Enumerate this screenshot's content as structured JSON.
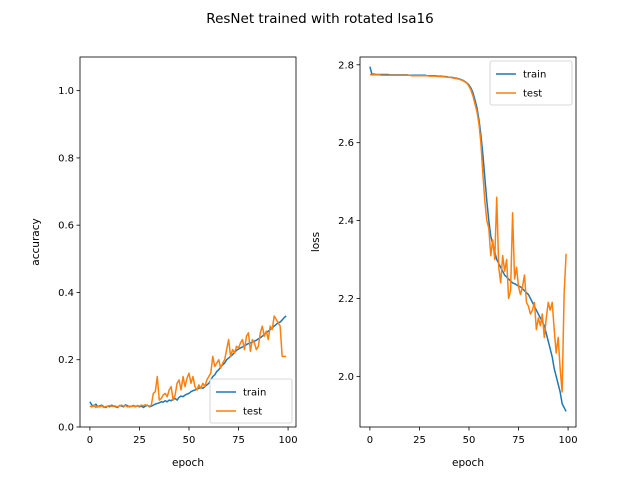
{
  "suptitle": "ResNet trained with rotated lsa16",
  "colors": {
    "train": "#1f77b4",
    "test": "#ff7f0e"
  },
  "chart_data": [
    {
      "type": "line",
      "xlabel": "epoch",
      "ylabel": "accuracy",
      "xlim": [
        -5,
        104
      ],
      "ylim": [
        0.0,
        1.1
      ],
      "xticks": [
        0,
        25,
        50,
        75,
        100
      ],
      "yticks": [
        0.0,
        0.2,
        0.4,
        0.6,
        0.8,
        1.0
      ],
      "legend": "lower-right",
      "series": [
        {
          "name": "train",
          "color": "#1f77b4",
          "values": [
            0.075,
            0.065,
            0.062,
            0.068,
            0.06,
            0.063,
            0.065,
            0.06,
            0.058,
            0.062,
            0.06,
            0.065,
            0.062,
            0.06,
            0.058,
            0.064,
            0.062,
            0.06,
            0.066,
            0.063,
            0.06,
            0.062,
            0.064,
            0.061,
            0.063,
            0.06,
            0.062,
            0.058,
            0.062,
            0.065,
            0.06,
            0.062,
            0.065,
            0.068,
            0.07,
            0.072,
            0.075,
            0.074,
            0.078,
            0.075,
            0.08,
            0.078,
            0.082,
            0.085,
            0.08,
            0.088,
            0.092,
            0.09,
            0.095,
            0.098,
            0.1,
            0.105,
            0.108,
            0.11,
            0.112,
            0.115,
            0.118,
            0.115,
            0.12,
            0.125,
            0.13,
            0.14,
            0.15,
            0.155,
            0.165,
            0.17,
            0.178,
            0.185,
            0.19,
            0.2,
            0.205,
            0.21,
            0.215,
            0.222,
            0.228,
            0.232,
            0.235,
            0.238,
            0.24,
            0.245,
            0.248,
            0.25,
            0.252,
            0.255,
            0.258,
            0.262,
            0.265,
            0.27,
            0.275,
            0.28,
            0.285,
            0.29,
            0.295,
            0.3,
            0.305,
            0.31,
            0.312,
            0.318,
            0.325,
            0.33
          ]
        },
        {
          "name": "test",
          "color": "#ff7f0e",
          "values": [
            0.062,
            0.06,
            0.065,
            0.058,
            0.062,
            0.06,
            0.063,
            0.058,
            0.061,
            0.062,
            0.064,
            0.061,
            0.063,
            0.062,
            0.06,
            0.063,
            0.065,
            0.062,
            0.064,
            0.06,
            0.062,
            0.061,
            0.063,
            0.06,
            0.064,
            0.062,
            0.065,
            0.063,
            0.066,
            0.064,
            0.062,
            0.065,
            0.1,
            0.105,
            0.15,
            0.08,
            0.085,
            0.095,
            0.1,
            0.09,
            0.11,
            0.12,
            0.08,
            0.095,
            0.13,
            0.14,
            0.11,
            0.15,
            0.12,
            0.145,
            0.16,
            0.13,
            0.15,
            0.12,
            0.11,
            0.125,
            0.115,
            0.13,
            0.12,
            0.14,
            0.15,
            0.16,
            0.21,
            0.18,
            0.19,
            0.2,
            0.175,
            0.19,
            0.2,
            0.23,
            0.26,
            0.21,
            0.23,
            0.22,
            0.24,
            0.235,
            0.25,
            0.26,
            0.23,
            0.27,
            0.28,
            0.225,
            0.26,
            0.25,
            0.23,
            0.24,
            0.28,
            0.3,
            0.27,
            0.285,
            0.26,
            0.3,
            0.29,
            0.33,
            0.32,
            0.31,
            0.3,
            0.21,
            0.21,
            0.21
          ]
        }
      ]
    },
    {
      "type": "line",
      "xlabel": "epoch",
      "ylabel": "loss",
      "xlim": [
        -5,
        104
      ],
      "ylim": [
        1.87,
        2.82
      ],
      "xticks": [
        0,
        25,
        50,
        75,
        100
      ],
      "yticks": [
        2.0,
        2.2,
        2.4,
        2.6,
        2.8
      ],
      "legend": "top-right",
      "series": [
        {
          "name": "train",
          "color": "#1f77b4",
          "values": [
            2.795,
            2.776,
            2.776,
            2.775,
            2.775,
            2.775,
            2.775,
            2.775,
            2.775,
            2.775,
            2.774,
            2.774,
            2.774,
            2.774,
            2.774,
            2.774,
            2.774,
            2.774,
            2.774,
            2.774,
            2.773,
            2.773,
            2.773,
            2.773,
            2.773,
            2.773,
            2.773,
            2.773,
            2.773,
            2.772,
            2.772,
            2.772,
            2.772,
            2.772,
            2.771,
            2.771,
            2.771,
            2.77,
            2.77,
            2.769,
            2.768,
            2.768,
            2.767,
            2.766,
            2.765,
            2.764,
            2.762,
            2.76,
            2.757,
            2.753,
            2.748,
            2.74,
            2.728,
            2.71,
            2.69,
            2.66,
            2.62,
            2.57,
            2.51,
            2.45,
            2.4,
            2.36,
            2.34,
            2.32,
            2.3,
            2.29,
            2.28,
            2.27,
            2.26,
            2.255,
            2.25,
            2.245,
            2.24,
            2.238,
            2.235,
            2.232,
            2.23,
            2.225,
            2.22,
            2.215,
            2.21,
            2.2,
            2.19,
            2.18,
            2.17,
            2.16,
            2.15,
            2.14,
            2.13,
            2.11,
            2.09,
            2.07,
            2.05,
            2.02,
            2.0,
            1.98,
            1.96,
            1.93,
            1.92,
            1.91
          ]
        },
        {
          "name": "test",
          "color": "#ff7f0e",
          "values": [
            2.775,
            2.774,
            2.774,
            2.774,
            2.774,
            2.774,
            2.773,
            2.773,
            2.773,
            2.773,
            2.773,
            2.773,
            2.773,
            2.773,
            2.773,
            2.773,
            2.773,
            2.773,
            2.773,
            2.773,
            2.773,
            2.772,
            2.772,
            2.772,
            2.772,
            2.772,
            2.772,
            2.772,
            2.772,
            2.772,
            2.771,
            2.771,
            2.771,
            2.771,
            2.77,
            2.77,
            2.77,
            2.769,
            2.769,
            2.768,
            2.768,
            2.767,
            2.766,
            2.765,
            2.764,
            2.763,
            2.761,
            2.759,
            2.756,
            2.752,
            2.745,
            2.735,
            2.72,
            2.7,
            2.68,
            2.65,
            2.6,
            2.52,
            2.45,
            2.4,
            2.38,
            2.31,
            2.35,
            2.3,
            2.46,
            2.28,
            2.24,
            2.31,
            2.27,
            2.3,
            2.2,
            2.22,
            2.42,
            2.25,
            2.28,
            2.23,
            2.21,
            2.23,
            2.26,
            2.19,
            2.18,
            2.16,
            2.17,
            2.19,
            2.12,
            2.15,
            2.13,
            2.16,
            2.1,
            2.15,
            2.19,
            2.17,
            2.19,
            2.12,
            2.06,
            2.1,
            2.02,
            1.96,
            2.21,
            2.315
          ]
        }
      ]
    }
  ]
}
